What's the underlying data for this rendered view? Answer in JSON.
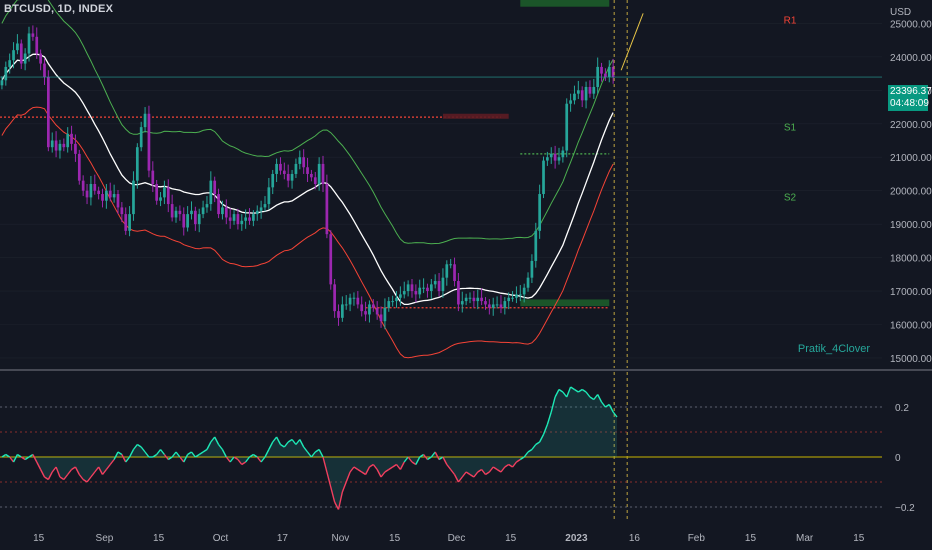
{
  "symbol": {
    "title": "BTCUSD, 1D, INDEX"
  },
  "currency": "USD",
  "last_price": {
    "value": "23396.37",
    "countdown": "04:48:09"
  },
  "watermark": "Pratik_4Clover",
  "pivot_labels": [
    "R1",
    "S1",
    "S2"
  ],
  "colors": {
    "background": "#131722",
    "grid": "#2a2e39",
    "axis_text": "#b2b5be",
    "bull": "#26a69a",
    "bear": "#9c27b0",
    "oscillator_up": "#1de9b6",
    "oscillator_down": "#f23f5f",
    "support": "#f44336",
    "resistance": "#4caf50",
    "midline": "#ffffff",
    "zero_line": "#c8b400",
    "zone_level": "#bb3dde"
  },
  "chart_data": [
    {
      "type": "candlestick",
      "title": "BTCUSD, 1D, INDEX",
      "y_axis_unit": "USD",
      "y_ticks": [
        15000,
        16000,
        17000,
        18000,
        19000,
        20000,
        21000,
        22000,
        23000,
        24000,
        25000
      ],
      "y_tick_labels": [
        "15000.00",
        "16000.00",
        "17000.00",
        "18000.00",
        "19000.00",
        "20000.00",
        "21000.00",
        "22000.00",
        "23000.00",
        "24000.00",
        "25000.00"
      ],
      "ylim": [
        14700,
        25700
      ],
      "x_tick_labels": [
        "15",
        "Sep",
        "15",
        "Oct",
        "17",
        "Nov",
        "15",
        "Dec",
        "15",
        "2023",
        "16",
        "Feb",
        "15",
        "Mar",
        "15"
      ],
      "x_tick_dates": [
        "2022-08-15",
        "2022-09-01",
        "2022-09-15",
        "2022-10-01",
        "2022-10-17",
        "2022-11-01",
        "2022-11-15",
        "2022-12-01",
        "2022-12-15",
        "2023-01-01",
        "2023-01-16",
        "2023-02-01",
        "2023-02-15",
        "2023-03-01",
        "2023-03-15"
      ],
      "date_range": [
        "2022-08-05",
        "2023-03-21"
      ],
      "closes": [
        23300,
        23700,
        23900,
        24200,
        24400,
        23800,
        24100,
        24700,
        24600,
        24100,
        23800,
        23400,
        21300,
        21500,
        21200,
        21400,
        21300,
        21700,
        21400,
        21100,
        20300,
        20000,
        19800,
        20200,
        20000,
        19900,
        19700,
        20000,
        19800,
        19900,
        19500,
        19300,
        18800,
        19300,
        20300,
        21300,
        21900,
        22300,
        20600,
        20200,
        19700,
        19800,
        20100,
        19600,
        19200,
        19400,
        19300,
        18900,
        19300,
        19400,
        19000,
        19300,
        19500,
        19600,
        20300,
        19900,
        19300,
        19500,
        19200,
        19100,
        19300,
        19000,
        19100,
        19200,
        19100,
        19300,
        19400,
        19500,
        19600,
        20100,
        20500,
        20800,
        20600,
        20500,
        20300,
        20500,
        20800,
        21000,
        20700,
        20500,
        20400,
        20200,
        20800,
        20200,
        18700,
        17200,
        16400,
        16200,
        16600,
        16600,
        16800,
        16800,
        16600,
        16400,
        16300,
        16600,
        16500,
        16300,
        16100,
        16500,
        16700,
        16700,
        16800,
        16900,
        17000,
        17200,
        17000,
        16900,
        17100,
        17100,
        17000,
        17200,
        17300,
        17000,
        17400,
        17800,
        17800,
        17300,
        16600,
        16700,
        16800,
        16800,
        16700,
        16800,
        16700,
        16600,
        16500,
        16600,
        16600,
        16500,
        16700,
        16800,
        16800,
        16900,
        16900,
        17100,
        17400,
        17900,
        18800,
        19900,
        20900,
        21000,
        21100,
        20900,
        21000,
        21200,
        22600,
        22700,
        22900,
        23000,
        22700,
        23100,
        22900,
        23100,
        23700,
        23500,
        23400,
        23700,
        23396.37
      ],
      "overlays": [
        {
          "name": "upper band",
          "color": "#4caf50"
        },
        {
          "name": "basis",
          "color": "#ffffff"
        },
        {
          "name": "lower band",
          "color": "#f44336"
        }
      ],
      "horizontal_levels": [
        22200,
        21100,
        16500
      ],
      "zones": [
        {
          "from": 22150,
          "to": 22300
        },
        {
          "from": 25500,
          "to": 25700
        },
        {
          "from": 16550,
          "to": 16750
        }
      ]
    },
    {
      "type": "area",
      "y_ticks": [
        0.2,
        0,
        -0.2
      ],
      "y_tick_labels": [
        "0.2",
        "0",
        "−0.2"
      ],
      "ylim": [
        -0.26,
        0.34
      ],
      "levels": [
        0.1,
        -0.1,
        0.2,
        -0.2
      ],
      "values": [
        0.0,
        0.01,
        0.0,
        -0.02,
        0.01,
        0.0,
        -0.01,
        0.0,
        0.01,
        -0.02,
        -0.05,
        -0.08,
        -0.09,
        -0.06,
        -0.04,
        -0.08,
        -0.09,
        -0.07,
        -0.05,
        -0.04,
        -0.07,
        -0.09,
        -0.1,
        -0.08,
        -0.06,
        -0.04,
        -0.07,
        -0.05,
        -0.03,
        -0.01,
        0.02,
        0.01,
        -0.02,
        0.0,
        0.03,
        0.05,
        0.04,
        0.02,
        0.0,
        0.0,
        0.01,
        0.03,
        0.01,
        -0.01,
        0.0,
        0.02,
        0.0,
        -0.02,
        0.01,
        0.02,
        0.0,
        0.01,
        0.02,
        0.03,
        0.06,
        0.08,
        0.05,
        0.03,
        0.0,
        -0.02,
        0.0,
        -0.01,
        -0.03,
        -0.02,
        0.0,
        0.01,
        0.0,
        -0.02,
        0.0,
        0.03,
        0.06,
        0.08,
        0.05,
        0.04,
        0.06,
        0.07,
        0.05,
        0.07,
        0.04,
        0.02,
        0.0,
        0.02,
        0.03,
        0.0,
        -0.06,
        -0.12,
        -0.18,
        -0.21,
        -0.14,
        -0.1,
        -0.06,
        -0.04,
        -0.05,
        -0.06,
        -0.07,
        -0.04,
        -0.03,
        -0.05,
        -0.08,
        -0.06,
        -0.05,
        -0.04,
        -0.03,
        -0.05,
        -0.02,
        0.0,
        -0.02,
        -0.03,
        0.0,
        0.01,
        -0.01,
        0.0,
        0.02,
        -0.01,
        0.0,
        -0.03,
        -0.05,
        -0.07,
        -0.1,
        -0.08,
        -0.06,
        -0.07,
        -0.08,
        -0.06,
        -0.05,
        -0.07,
        -0.06,
        -0.04,
        -0.05,
        -0.06,
        -0.04,
        -0.03,
        -0.04,
        -0.02,
        -0.01,
        0.0,
        0.02,
        0.03,
        0.05,
        0.06,
        0.09,
        0.13,
        0.18,
        0.24,
        0.27,
        0.26,
        0.24,
        0.28,
        0.27,
        0.26,
        0.27,
        0.26,
        0.24,
        0.23,
        0.25,
        0.22,
        0.2,
        0.21,
        0.18,
        0.16
      ]
    }
  ]
}
